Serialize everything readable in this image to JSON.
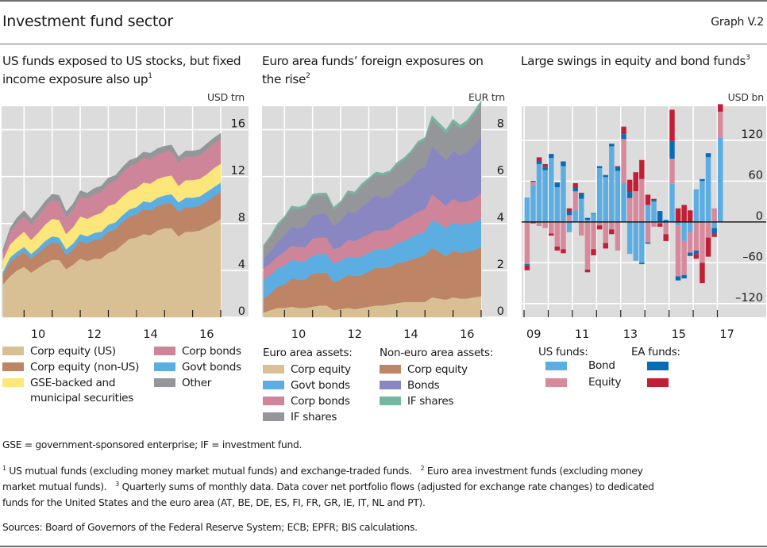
{
  "header": {
    "title": "Investment fund sector",
    "graph_number": "Graph V.2"
  },
  "colors": {
    "background_plot": "#dcdcdd",
    "gridline": "#ffffff",
    "corp_equity_us": "#d8c094",
    "corp_equity_nonus": "#bd8466",
    "gse_municipal": "#fde77a",
    "govt_bonds": "#5caee2",
    "corp_bonds": "#cf8599",
    "other": "#959699",
    "bonds_noneuro": "#8887c2",
    "if_shares_noneuro": "#74b6a0",
    "us_bond": "#5caee2",
    "us_equity": "#d88a9d",
    "ea_bond": "#0a6cb5",
    "ea_equity": "#c11f35"
  },
  "chart_data": [
    {
      "type": "area",
      "title": "US funds exposed to US stocks, but fixed income exposure also up",
      "title_footnote": "1",
      "unit": "USD trn",
      "xlabel": "",
      "ylabel": "USD trn",
      "ylim": [
        0,
        18
      ],
      "yticks": [
        0,
        4,
        8,
        12,
        16
      ],
      "ytick_labels": [
        "0",
        "4",
        "8",
        "12",
        "16"
      ],
      "x_start": 2009.25,
      "x_end": 2017.0,
      "xlim": [
        2009.2,
        2017.0
      ],
      "xticks_at": [
        2010,
        2011,
        2012,
        2013,
        2014,
        2015,
        2016,
        2017
      ],
      "xlabels": [
        {
          "label": "10",
          "at": 2010.5
        },
        {
          "label": "12",
          "at": 2012.5
        },
        {
          "label": "14",
          "at": 2014.5
        },
        {
          "label": "16",
          "at": 2016.5
        }
      ],
      "grid": true,
      "stacked": true,
      "series": [
        {
          "name": "Corp equity (US)",
          "color_key": "corp_equity_us",
          "values": [
            2.8,
            3.5,
            4.0,
            4.3,
            3.8,
            4.2,
            4.6,
            4.9,
            4.9,
            4.1,
            4.5,
            5.0,
            4.8,
            5.0,
            5.0,
            5.5,
            5.7,
            6.2,
            6.7,
            6.8,
            7.1,
            7.0,
            7.4,
            7.6,
            7.6,
            6.9,
            7.3,
            7.3,
            7.4,
            7.7,
            8.0,
            8.4
          ]
        },
        {
          "name": "Corp equity (non-US)",
          "color_key": "corp_equity_nonus",
          "values": [
            0.8,
            1.2,
            1.2,
            1.3,
            1.2,
            1.3,
            1.4,
            1.5,
            1.4,
            1.2,
            1.3,
            1.5,
            1.5,
            1.6,
            1.7,
            1.8,
            1.8,
            1.9,
            1.9,
            2.0,
            2.1,
            2.1,
            2.1,
            2.1,
            2.1,
            2.1,
            2.1,
            2.1,
            2.1,
            2.2,
            2.3,
            2.3
          ]
        },
        {
          "name": "Govt bonds",
          "color_key": "govt_bonds",
          "values": [
            0.3,
            0.4,
            0.4,
            0.4,
            0.4,
            0.4,
            0.5,
            0.5,
            0.5,
            0.5,
            0.5,
            0.6,
            0.6,
            0.6,
            0.6,
            0.6,
            0.6,
            0.6,
            0.6,
            0.6,
            0.7,
            0.7,
            0.7,
            0.7,
            0.8,
            0.8,
            0.8,
            0.8,
            0.8,
            0.8,
            0.8,
            0.8
          ]
        },
        {
          "name": "GSE-backed and municipal securities",
          "color_key": "gse_municipal",
          "values": [
            1.0,
            1.1,
            1.2,
            1.3,
            1.2,
            1.3,
            1.4,
            1.5,
            1.5,
            1.3,
            1.4,
            1.5,
            1.5,
            1.5,
            1.6,
            1.6,
            1.6,
            1.6,
            1.6,
            1.6,
            1.6,
            1.6,
            1.6,
            1.6,
            1.6,
            1.4,
            1.5,
            1.5,
            1.5,
            1.5,
            1.6,
            1.6
          ]
        },
        {
          "name": "Corp bonds",
          "color_key": "corp_bonds",
          "values": [
            0.6,
            1.0,
            1.2,
            1.3,
            1.3,
            1.4,
            1.5,
            1.6,
            1.6,
            1.4,
            1.5,
            1.7,
            1.7,
            1.8,
            1.8,
            1.9,
            1.9,
            2.0,
            2.1,
            2.1,
            2.1,
            2.1,
            2.1,
            2.1,
            2.1,
            2.0,
            2.0,
            2.0,
            2.0,
            2.1,
            2.1,
            2.1
          ]
        },
        {
          "name": "Other",
          "color_key": "other",
          "values": [
            0.3,
            0.4,
            0.5,
            0.5,
            0.5,
            0.5,
            0.5,
            0.5,
            0.5,
            0.5,
            0.5,
            0.5,
            0.5,
            0.5,
            0.5,
            0.5,
            0.5,
            0.5,
            0.5,
            0.5,
            0.5,
            0.5,
            0.5,
            0.5,
            0.5,
            0.5,
            0.5,
            0.5,
            0.5,
            0.5,
            0.5,
            0.5
          ]
        }
      ]
    },
    {
      "type": "area",
      "title": "Euro area funds’ foreign exposures on the rise",
      "title_footnote": "2",
      "unit": "EUR trn",
      "xlabel": "",
      "ylabel": "EUR trn",
      "ylim": [
        0,
        9
      ],
      "yticks": [
        0,
        2,
        4,
        6,
        8
      ],
      "ytick_labels": [
        "0",
        "2",
        "4",
        "6",
        "8"
      ],
      "x_start": 2009.25,
      "x_end": 2017.0,
      "xlim": [
        2009.2,
        2017.0
      ],
      "xticks_at": [
        2010,
        2011,
        2012,
        2013,
        2014,
        2015,
        2016,
        2017
      ],
      "xlabels": [
        {
          "label": "10",
          "at": 2010.5
        },
        {
          "label": "12",
          "at": 2012.5
        },
        {
          "label": "14",
          "at": 2014.5
        },
        {
          "label": "16",
          "at": 2016.5
        }
      ],
      "grid": true,
      "stacked": true,
      "series": [
        {
          "name": "Euro area assets: Corp equity",
          "color_key": "corp_equity_us",
          "values": [
            0.2,
            0.3,
            0.4,
            0.4,
            0.45,
            0.4,
            0.4,
            0.45,
            0.5,
            0.5,
            0.3,
            0.35,
            0.4,
            0.35,
            0.4,
            0.45,
            0.5,
            0.5,
            0.55,
            0.6,
            0.65,
            0.65,
            0.65,
            0.65,
            0.85,
            0.8,
            0.75,
            0.85,
            0.8,
            0.8,
            0.85,
            0.9
          ]
        },
        {
          "name": "Non-euro area assets: Corp equity",
          "color_key": "corp_equity_nonus",
          "values": [
            0.6,
            0.7,
            0.9,
            1.0,
            1.2,
            1.2,
            1.2,
            1.4,
            1.4,
            1.4,
            1.2,
            1.25,
            1.4,
            1.4,
            1.4,
            1.5,
            1.6,
            1.6,
            1.6,
            1.7,
            1.7,
            1.8,
            1.9,
            2.0,
            2.1,
            2.0,
            1.85,
            2.0,
            1.95,
            2.0,
            2.0,
            2.1
          ]
        },
        {
          "name": "Euro area assets: Govt bonds",
          "color_key": "govt_bonds",
          "values": [
            0.8,
            0.8,
            0.8,
            0.8,
            0.8,
            0.8,
            0.8,
            0.8,
            0.8,
            0.8,
            0.8,
            0.8,
            0.8,
            0.8,
            0.8,
            0.8,
            0.8,
            0.8,
            0.8,
            0.85,
            0.9,
            0.95,
            1.0,
            1.0,
            1.2,
            1.2,
            1.2,
            1.2,
            1.2,
            1.2,
            1.2,
            1.2
          ]
        },
        {
          "name": "Euro area assets: Corp bonds",
          "color_key": "corp_bonds",
          "values": [
            0.5,
            0.5,
            0.5,
            0.6,
            0.6,
            0.6,
            0.6,
            0.7,
            0.7,
            0.7,
            0.6,
            0.6,
            0.7,
            0.7,
            0.8,
            0.8,
            0.8,
            0.8,
            0.8,
            0.85,
            0.9,
            0.9,
            0.95,
            0.95,
            1.1,
            1.0,
            0.95,
            1.0,
            0.95,
            0.95,
            1.0,
            1.1
          ]
        },
        {
          "name": "Non-euro area assets: Bonds",
          "color_key": "bonds_noneuro",
          "values": [
            0.4,
            0.5,
            0.6,
            0.7,
            0.8,
            0.8,
            0.9,
            1.0,
            1.0,
            1.0,
            1.0,
            1.1,
            1.2,
            1.2,
            1.3,
            1.4,
            1.5,
            1.4,
            1.4,
            1.5,
            1.5,
            1.6,
            1.8,
            1.8,
            2.0,
            2.0,
            1.95,
            2.05,
            2.0,
            2.1,
            2.3,
            2.4
          ]
        },
        {
          "name": "Euro area assets: IF shares",
          "color_key": "other",
          "values": [
            0.5,
            0.6,
            0.7,
            0.7,
            0.8,
            0.8,
            0.8,
            0.8,
            0.8,
            0.8,
            0.7,
            0.75,
            0.8,
            0.8,
            0.9,
            0.9,
            0.9,
            0.95,
            1.0,
            1.0,
            1.05,
            1.1,
            1.1,
            1.15,
            1.2,
            1.15,
            1.15,
            1.2,
            1.15,
            1.2,
            1.3,
            1.4
          ]
        },
        {
          "name": "Non-euro area assets: IF shares",
          "color_key": "if_shares_noneuro",
          "values": [
            0.08,
            0.08,
            0.1,
            0.1,
            0.1,
            0.1,
            0.1,
            0.1,
            0.1,
            0.1,
            0.1,
            0.1,
            0.1,
            0.1,
            0.1,
            0.1,
            0.1,
            0.1,
            0.1,
            0.1,
            0.1,
            0.1,
            0.1,
            0.12,
            0.15,
            0.15,
            0.15,
            0.15,
            0.15,
            0.15,
            0.15,
            0.15
          ]
        }
      ]
    },
    {
      "type": "bar",
      "title": "Large swings in equity and bond funds",
      "title_footnote": "3",
      "unit": "USD bn",
      "xlabel": "",
      "ylabel": "USD bn",
      "ylim": [
        -140,
        170
      ],
      "yticks": [
        -120,
        -60,
        0,
        60,
        120
      ],
      "ytick_labels": [
        "–120",
        "–60",
        "0",
        "60",
        "120"
      ],
      "x_start": 2009.0,
      "xlim": [
        2008.9,
        2018.2
      ],
      "xticks_at": [
        2009,
        2010,
        2011,
        2012,
        2013,
        2014,
        2015,
        2016,
        2017
      ],
      "xlabels": [
        {
          "label": "09",
          "at": 2009.4
        },
        {
          "label": "11",
          "at": 2011.4
        },
        {
          "label": "13",
          "at": 2013.4
        },
        {
          "label": "15",
          "at": 2015.4
        },
        {
          "label": "17",
          "at": 2017.4
        }
      ],
      "grid": true,
      "stacked": true,
      "categories": [
        "2009Q1",
        "2009Q2",
        "2009Q3",
        "2009Q4",
        "2010Q1",
        "2010Q2",
        "2010Q3",
        "2010Q4",
        "2011Q1",
        "2011Q2",
        "2011Q3",
        "2011Q4",
        "2012Q1",
        "2012Q2",
        "2012Q3",
        "2012Q4",
        "2013Q1",
        "2013Q2",
        "2013Q3",
        "2013Q4",
        "2014Q1",
        "2014Q2",
        "2014Q3",
        "2014Q4",
        "2015Q1",
        "2015Q2",
        "2015Q3",
        "2015Q4",
        "2016Q1",
        "2016Q2",
        "2016Q3",
        "2016Q4",
        "2017Q1"
      ],
      "series": [
        {
          "name": "US funds: Bond",
          "color_key": "us_bond",
          "values": [
            36,
            54,
            85,
            76,
            94,
            51,
            82,
            -15,
            17,
            34,
            3,
            12,
            79,
            66,
            111,
            75,
            57,
            -47,
            -57,
            -60,
            25,
            30,
            1,
            -2,
            56,
            -5,
            -28,
            -15,
            48,
            60,
            95,
            -9,
            124
          ]
        },
        {
          "name": "US funds: Equity",
          "color_key": "us_equity",
          "values": [
            -62,
            5,
            -6,
            -9,
            -17,
            -36,
            -40,
            10,
            28,
            -20,
            -70,
            -40,
            -5,
            -31,
            -11,
            -42,
            65,
            35,
            45,
            63,
            -30,
            -7,
            -2,
            -16,
            37,
            -75,
            -50,
            -30,
            -42,
            -60,
            -23,
            20,
            38
          ]
        },
        {
          "name": "EA funds: Bond",
          "color_key": "ea_bond",
          "values": [
            -2,
            1.5,
            5,
            5,
            6,
            7,
            7,
            5,
            5,
            8,
            3,
            1,
            3,
            3,
            4,
            6,
            7,
            9,
            0,
            -2,
            -2,
            2,
            15,
            3,
            26,
            -6,
            -5,
            -5,
            -5,
            3,
            6,
            -9,
            1
          ]
        },
        {
          "name": "EA funds: Equity",
          "color_key": "ea_equity",
          "values": [
            -7,
            -2,
            5,
            4,
            -3,
            -6,
            -6,
            5,
            7,
            1,
            -4,
            -9,
            -6,
            -8,
            -7,
            1,
            11,
            18,
            28,
            28,
            15,
            2,
            -5,
            -10,
            46,
            20,
            25,
            17,
            -7,
            -30,
            -28,
            -4,
            10
          ]
        }
      ]
    }
  ],
  "panels": [
    {
      "title": "US funds exposed to US stocks, but fixed income exposure also up",
      "footnote_ref": "1",
      "unit": "USD trn"
    },
    {
      "title": "Euro area funds’ foreign exposures on the rise",
      "footnote_ref": "2",
      "unit": "EUR trn"
    },
    {
      "title": "Large swings in equity and bond funds",
      "footnote_ref": "3",
      "unit": "USD bn"
    }
  ],
  "legend1": {
    "items": [
      {
        "label": "Corp equity (US)",
        "color_key": "corp_equity_us"
      },
      {
        "label": "Corp equity (non-US)",
        "color_key": "corp_equity_nonus"
      },
      {
        "label": "GSE-backed and",
        "label2": "municipal securities",
        "color_key": "gse_municipal"
      },
      {
        "label": "Corp bonds",
        "color_key": "corp_bonds"
      },
      {
        "label": "Govt bonds",
        "color_key": "govt_bonds"
      },
      {
        "label": "Other",
        "color_key": "other"
      }
    ]
  },
  "legend2": {
    "group1_title": "Euro area assets:",
    "group2_title": "Non-euro area assets:",
    "group1": [
      {
        "label": "Corp equity",
        "color_key": "corp_equity_us"
      },
      {
        "label": "Govt bonds",
        "color_key": "govt_bonds"
      },
      {
        "label": "Corp bonds",
        "color_key": "corp_bonds"
      },
      {
        "label": "IF shares",
        "color_key": "other"
      }
    ],
    "group2": [
      {
        "label": "Corp equity",
        "color_key": "corp_equity_nonus"
      },
      {
        "label": "Bonds",
        "color_key": "bonds_noneuro"
      },
      {
        "label": "IF shares",
        "color_key": "if_shares_noneuro"
      }
    ]
  },
  "legend3": {
    "us_title": "US funds:",
    "ea_title": "EA funds:",
    "rows": [
      {
        "label": "Bond",
        "us_color_key": "us_bond",
        "ea_color_key": "ea_bond"
      },
      {
        "label": "Equity",
        "us_color_key": "us_equity",
        "ea_color_key": "ea_equity"
      }
    ]
  },
  "notes": {
    "abbreviations": "GSE = government-sponsored enterprise; IF = investment fund.",
    "footnote1_mark": "1",
    "footnote1": "US mutual funds (excluding money market mutual funds) and exchange-traded funds.",
    "footnote2_mark": "2",
    "footnote2a": "Euro area investment funds (excluding money",
    "footnote2b": "market mutual funds).",
    "footnote3_mark": "3",
    "footnote3a": "Quarterly sums of monthly data. Data cover net portfolio flows (adjusted for exchange rate changes) to dedicated",
    "footnote3b": "funds for the United States and the euro area (AT, BE, DE, ES, FI, FR, GR, IE, IT, NL and PT).",
    "sources": "Sources: Board of Governors of the Federal Reserve System; ECB; EPFR; BIS calculations."
  }
}
